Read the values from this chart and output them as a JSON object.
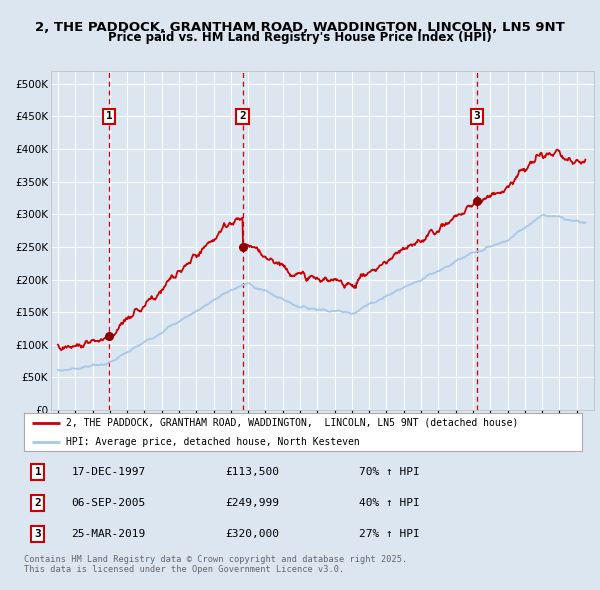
{
  "title_line1": "2, THE PADDOCK, GRANTHAM ROAD, WADDINGTON, LINCOLN, LN5 9NT",
  "title_line2": "Price paid vs. HM Land Registry's House Price Index (HPI)",
  "ylim": [
    0,
    520000
  ],
  "yticks": [
    0,
    50000,
    100000,
    150000,
    200000,
    250000,
    300000,
    350000,
    400000,
    450000,
    500000
  ],
  "background_color": "#dce6f1",
  "grid_color": "#ffffff",
  "red_line_color": "#cc0000",
  "blue_line_color": "#a8c8e8",
  "sale1_date": 1997.96,
  "sale1_price": 113500,
  "sale2_date": 2005.68,
  "sale2_price": 249999,
  "sale3_date": 2019.23,
  "sale3_price": 320000,
  "legend_label_red": "2, THE PADDOCK, GRANTHAM ROAD, WADDINGTON,  LINCOLN, LN5 9NT (detached house)",
  "legend_label_blue": "HPI: Average price, detached house, North Kesteven",
  "footer_line1": "Contains HM Land Registry data © Crown copyright and database right 2025.",
  "footer_line2": "This data is licensed under the Open Government Licence v3.0.",
  "table": [
    {
      "num": "1",
      "date": "17-DEC-1997",
      "price": "£113,500",
      "hpi": "70% ↑ HPI"
    },
    {
      "num": "2",
      "date": "06-SEP-2005",
      "price": "£249,999",
      "hpi": "40% ↑ HPI"
    },
    {
      "num": "3",
      "date": "25-MAR-2019",
      "price": "£320,000",
      "hpi": "27% ↑ HPI"
    }
  ]
}
